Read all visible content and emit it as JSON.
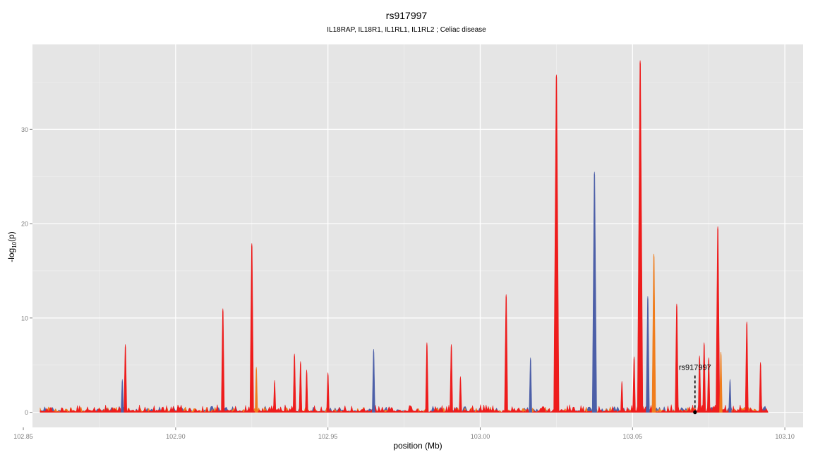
{
  "chart_data": {
    "type": "area",
    "title": "rs917997",
    "subtitle": "IL18RAP, IL18R1, IL1RL1, IL1RL2 ; Celiac disease",
    "xlabel": "position (Mb)",
    "ylabel_main": "-log",
    "ylabel_sub": "10",
    "ylabel_tail": "(p)",
    "xlim": [
      102.853,
      103.106
    ],
    "ylim": [
      -1.6,
      39.0
    ],
    "x_ticks": [
      102.85,
      102.9,
      102.95,
      103.0,
      103.05,
      103.1
    ],
    "x_tick_labels": [
      "102.85",
      "102.90",
      "102.95",
      "103.00",
      "103.05",
      "103.10"
    ],
    "y_ticks": [
      0,
      10,
      20,
      30
    ],
    "y_tick_labels": [
      "0",
      "10",
      "20",
      "30"
    ],
    "grid": true,
    "panel_background": "#e5e5e5",
    "x_data_range": [
      102.8555,
      103.0945
    ],
    "peaks": [
      {
        "x": 102.8835,
        "y": 7.2,
        "color": "#ee1c1c"
      },
      {
        "x": 102.8825,
        "y": 3.5,
        "color": "#4c5fa8"
      },
      {
        "x": 102.9155,
        "y": 11.0,
        "color": "#ee1c1c"
      },
      {
        "x": 102.925,
        "y": 17.9,
        "color": "#ee1c1c"
      },
      {
        "x": 102.9265,
        "y": 4.8,
        "color": "#f07d1c"
      },
      {
        "x": 102.9325,
        "y": 3.4,
        "color": "#ee1c1c"
      },
      {
        "x": 102.939,
        "y": 6.2,
        "color": "#ee1c1c"
      },
      {
        "x": 102.941,
        "y": 5.4,
        "color": "#ee1c1c"
      },
      {
        "x": 102.943,
        "y": 4.5,
        "color": "#ee1c1c"
      },
      {
        "x": 102.95,
        "y": 4.2,
        "color": "#ee1c1c"
      },
      {
        "x": 102.965,
        "y": 6.7,
        "color": "#4c5fa8"
      },
      {
        "x": 102.9825,
        "y": 7.4,
        "color": "#ee1c1c"
      },
      {
        "x": 102.9905,
        "y": 7.2,
        "color": "#ee1c1c"
      },
      {
        "x": 102.9935,
        "y": 3.8,
        "color": "#ee1c1c"
      },
      {
        "x": 103.0085,
        "y": 12.5,
        "color": "#ee1c1c"
      },
      {
        "x": 103.0165,
        "y": 5.8,
        "color": "#4c5fa8"
      },
      {
        "x": 103.025,
        "y": 35.8,
        "color": "#ee1c1c"
      },
      {
        "x": 103.0375,
        "y": 25.5,
        "color": "#4c5fa8"
      },
      {
        "x": 103.0465,
        "y": 3.3,
        "color": "#ee1c1c"
      },
      {
        "x": 103.0505,
        "y": 5.9,
        "color": "#ee1c1c"
      },
      {
        "x": 103.0525,
        "y": 37.3,
        "color": "#ee1c1c"
      },
      {
        "x": 103.055,
        "y": 12.3,
        "color": "#4c5fa8"
      },
      {
        "x": 103.057,
        "y": 16.8,
        "color": "#f07d1c"
      },
      {
        "x": 103.0645,
        "y": 11.5,
        "color": "#ee1c1c"
      },
      {
        "x": 103.072,
        "y": 6.0,
        "color": "#ee1c1c"
      },
      {
        "x": 103.0735,
        "y": 7.4,
        "color": "#ee1c1c"
      },
      {
        "x": 103.075,
        "y": 5.8,
        "color": "#ee1c1c"
      },
      {
        "x": 103.078,
        "y": 19.7,
        "color": "#ee1c1c"
      },
      {
        "x": 103.079,
        "y": 6.4,
        "color": "#f07d1c"
      },
      {
        "x": 103.082,
        "y": 3.5,
        "color": "#4c5fa8"
      },
      {
        "x": 103.0875,
        "y": 9.6,
        "color": "#ee1c1c"
      },
      {
        "x": 103.092,
        "y": 5.3,
        "color": "#ee1c1c"
      }
    ],
    "annotation": {
      "label": "rs917997",
      "x": 103.0705,
      "y": 0,
      "line_top": 3.9
    }
  }
}
